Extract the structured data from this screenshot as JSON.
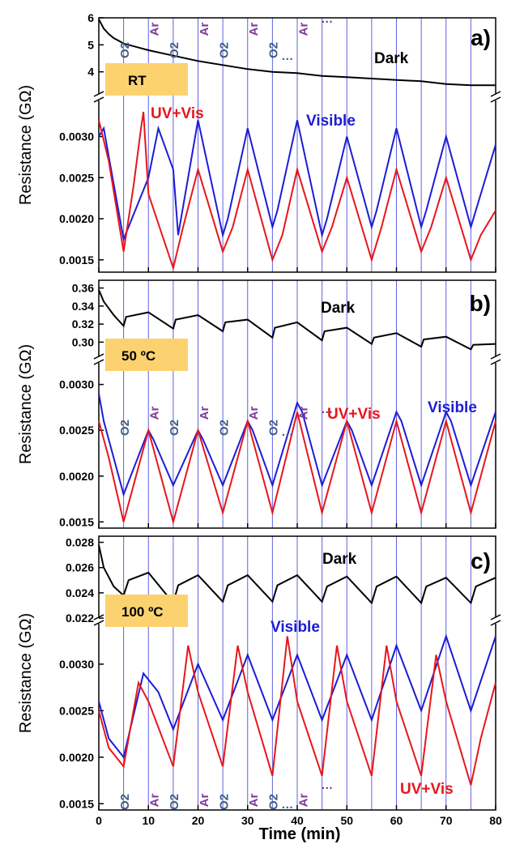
{
  "chart_data": {
    "type": "line",
    "xlabel": "Time (min)",
    "xlim": [
      0,
      80
    ],
    "x_ticks": [
      "0",
      "10",
      "20",
      "30",
      "40",
      "50",
      "60",
      "70",
      "80"
    ],
    "switch_times": [
      5,
      10,
      15,
      20,
      25,
      30,
      35,
      40,
      45,
      50,
      55,
      60,
      65,
      70,
      75
    ],
    "colors": {
      "dark": "#000000",
      "uvvis": "#e8151b",
      "visible": "#1c1cd6",
      "temp_box": "#fcd271",
      "gas_o2": "#3f5f86",
      "gas_ar": "#7e3a96",
      "switch_line": "#6060e0"
    },
    "panels": [
      {
        "letter": "a)",
        "temperature": "RT",
        "ylabel": "Resistance (GΩ)",
        "dark_ticks": [
          "6",
          "5",
          "4"
        ],
        "dark_ylim": [
          3.3,
          6.0
        ],
        "lower_ticks": [
          "0.0030",
          "0.0025",
          "0.0020",
          "0.0015"
        ],
        "lower_ylim": [
          0.00135,
          0.0034
        ],
        "gas_labels_top": [
          "O2",
          "Ar",
          "O2",
          "Ar",
          "O2",
          "Ar",
          "O2",
          "Ar",
          "…",
          "…"
        ],
        "dark": {
          "name": "Dark",
          "x": [
            0,
            1,
            2,
            3,
            4,
            5,
            8,
            10,
            15,
            20,
            25,
            30,
            35,
            40,
            45,
            50,
            55,
            60,
            65,
            70,
            75,
            80
          ],
          "y": [
            5.95,
            5.6,
            5.4,
            5.25,
            5.15,
            5.05,
            4.9,
            4.8,
            4.6,
            4.4,
            4.25,
            4.1,
            4.0,
            3.95,
            3.85,
            3.8,
            3.75,
            3.7,
            3.65,
            3.55,
            3.5,
            3.5
          ]
        },
        "uvvis": {
          "name": "UV+Vis",
          "x": [
            0,
            2,
            5,
            7,
            8.5,
            9,
            10,
            15,
            17,
            20,
            25,
            27,
            30,
            35,
            37,
            40,
            45,
            47,
            50,
            55,
            57,
            60,
            65,
            67,
            70,
            75,
            77,
            80
          ],
          "y": [
            0.0032,
            0.0027,
            0.0016,
            0.0024,
            0.0031,
            0.0033,
            0.0023,
            0.0014,
            0.0019,
            0.0026,
            0.0016,
            0.0019,
            0.0026,
            0.0015,
            0.0018,
            0.0026,
            0.0016,
            0.0019,
            0.0025,
            0.0015,
            0.0019,
            0.0026,
            0.0016,
            0.0019,
            0.0025,
            0.0015,
            0.0018,
            0.0021
          ]
        },
        "visible": {
          "name": "Visible",
          "x": [
            0,
            1,
            5,
            8,
            10,
            12,
            15,
            16,
            20,
            25,
            26,
            30,
            35,
            36,
            40,
            45,
            46,
            50,
            55,
            56,
            60,
            65,
            66,
            70,
            75,
            76,
            80
          ],
          "y": [
            0.003,
            0.0031,
            0.00175,
            0.0022,
            0.0025,
            0.0031,
            0.0026,
            0.0018,
            0.0032,
            0.0018,
            0.002,
            0.0031,
            0.0019,
            0.0021,
            0.0032,
            0.0018,
            0.002,
            0.003,
            0.0019,
            0.0021,
            0.0031,
            0.0019,
            0.0021,
            0.003,
            0.0019,
            0.0021,
            0.0029
          ]
        }
      },
      {
        "letter": "b)",
        "temperature": "50 ºC",
        "ylabel": "Resistance (GΩ)",
        "dark_ticks": [
          "0.36",
          "0.34",
          "0.32",
          "0.30"
        ],
        "dark_ylim": [
          0.286,
          0.365
        ],
        "lower_ticks": [
          "0.0030",
          "0.0025",
          "0.0020",
          "0.0015"
        ],
        "lower_ylim": [
          0.00145,
          0.0032
        ],
        "gas_labels_top": [
          "O2",
          "Ar",
          "O2",
          "Ar",
          "O2",
          "Ar",
          "O2",
          "Ar",
          "…",
          "…"
        ],
        "dark": {
          "name": "Dark",
          "x": [
            0,
            1,
            3,
            5,
            5.5,
            10,
            15,
            15.5,
            20,
            25,
            25.5,
            30,
            35,
            35.5,
            40,
            45,
            45.5,
            50,
            55,
            55.5,
            60,
            65,
            65.5,
            70,
            75,
            75.5,
            80
          ],
          "y": [
            0.358,
            0.345,
            0.33,
            0.318,
            0.328,
            0.333,
            0.315,
            0.325,
            0.33,
            0.312,
            0.322,
            0.325,
            0.305,
            0.316,
            0.322,
            0.302,
            0.312,
            0.316,
            0.298,
            0.305,
            0.31,
            0.295,
            0.303,
            0.306,
            0.292,
            0.297,
            0.298
          ]
        },
        "uvvis": {
          "name": "UV+Vis",
          "x": [
            0,
            2,
            5,
            10,
            15,
            20,
            25,
            30,
            35,
            40,
            45,
            50,
            55,
            60,
            65,
            70,
            75,
            80
          ],
          "y": [
            0.0026,
            0.0022,
            0.0015,
            0.0025,
            0.0015,
            0.0025,
            0.0016,
            0.0026,
            0.0016,
            0.0027,
            0.0016,
            0.0026,
            0.0016,
            0.0026,
            0.0016,
            0.0026,
            0.0016,
            0.0026
          ]
        },
        "visible": {
          "name": "Visible",
          "x": [
            0,
            1,
            5,
            10,
            11,
            15,
            20,
            21,
            25,
            30,
            31,
            35,
            40,
            41,
            45,
            50,
            51,
            55,
            60,
            61,
            65,
            70,
            71,
            75,
            80
          ],
          "y": [
            0.0029,
            0.0026,
            0.0018,
            0.0025,
            0.0024,
            0.0019,
            0.0025,
            0.0024,
            0.0019,
            0.0026,
            0.0025,
            0.0019,
            0.0028,
            0.0027,
            0.0019,
            0.0026,
            0.0025,
            0.0019,
            0.0027,
            0.0026,
            0.0019,
            0.0027,
            0.0026,
            0.0019,
            0.0027
          ]
        }
      },
      {
        "letter": "c)",
        "temperature": "100 ºC",
        "ylabel": "Resistance (GΩ)",
        "dark_ticks": [
          "0.028",
          "0.026",
          "0.024",
          "0.022"
        ],
        "dark_ylim": [
          0.0222,
          0.0281
        ],
        "lower_ticks": [
          "0.0030",
          "0.0025",
          "0.0020",
          "0.0015"
        ],
        "lower_ylim": [
          0.00145,
          0.0034
        ],
        "gas_labels_bottom": [
          "O2",
          "Ar",
          "O2",
          "Ar",
          "O2",
          "Ar",
          "O2",
          "Ar",
          "…",
          "…"
        ],
        "dark": {
          "name": "Dark",
          "x": [
            0,
            1,
            3,
            5,
            6,
            10,
            15,
            16,
            20,
            25,
            26,
            30,
            35,
            36,
            40,
            45,
            46,
            50,
            55,
            56,
            60,
            65,
            66,
            70,
            75,
            76,
            80
          ],
          "y": [
            0.0278,
            0.026,
            0.0245,
            0.0238,
            0.025,
            0.0256,
            0.0232,
            0.0246,
            0.0254,
            0.0233,
            0.0246,
            0.0254,
            0.0233,
            0.0246,
            0.0254,
            0.0233,
            0.0245,
            0.0253,
            0.0232,
            0.0245,
            0.0253,
            0.0232,
            0.0245,
            0.0252,
            0.0232,
            0.0245,
            0.0252
          ]
        },
        "uvvis": {
          "name": "UV+Vis",
          "x": [
            0,
            2,
            5,
            8,
            10,
            15,
            18,
            20,
            25,
            28,
            30,
            35,
            38,
            40,
            45,
            48,
            50,
            55,
            58,
            60,
            65,
            68,
            70,
            75,
            77,
            80
          ],
          "y": [
            0.0025,
            0.0021,
            0.0019,
            0.0028,
            0.0026,
            0.0019,
            0.0032,
            0.0027,
            0.0019,
            0.0032,
            0.0027,
            0.0018,
            0.0033,
            0.0026,
            0.0018,
            0.0032,
            0.0026,
            0.0018,
            0.0032,
            0.0026,
            0.0018,
            0.0031,
            0.0026,
            0.0017,
            0.0022,
            0.0028
          ]
        },
        "visible": {
          "name": "Visible",
          "x": [
            0,
            2,
            5,
            9,
            12,
            15,
            20,
            25,
            30,
            35,
            40,
            45,
            50,
            55,
            60,
            65,
            70,
            75,
            80
          ],
          "y": [
            0.0026,
            0.0022,
            0.002,
            0.0029,
            0.0027,
            0.0023,
            0.003,
            0.0024,
            0.0031,
            0.0024,
            0.0031,
            0.0024,
            0.0031,
            0.0024,
            0.0032,
            0.0025,
            0.0033,
            0.0025,
            0.0033
          ]
        }
      }
    ]
  }
}
